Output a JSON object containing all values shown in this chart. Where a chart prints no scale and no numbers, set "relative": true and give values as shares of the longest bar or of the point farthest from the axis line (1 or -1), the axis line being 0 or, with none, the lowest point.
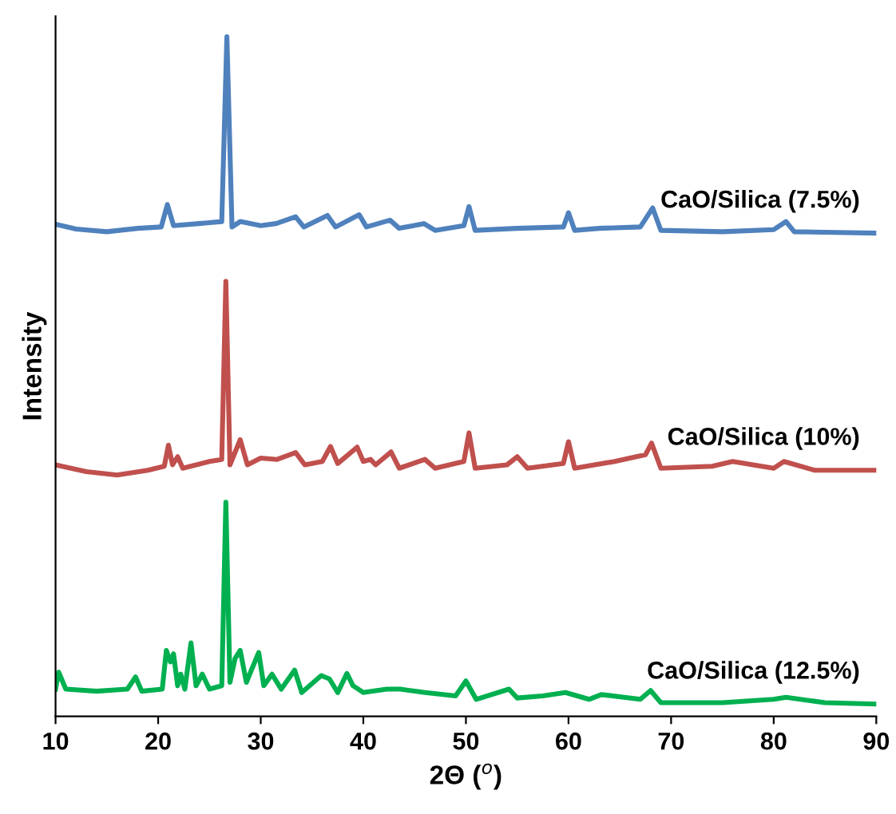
{
  "chart_data": {
    "type": "line",
    "relative": true,
    "xlabel": "2Θ ($^{o}$)",
    "ylabel": "Intensity",
    "xlim": [
      10,
      90
    ],
    "xticks": [
      10,
      20,
      30,
      40,
      50,
      60,
      70,
      80,
      90
    ],
    "legend": false,
    "grid": false,
    "tick_labels": "x",
    "marker": "none",
    "line_style": "solid",
    "series": [
      {
        "name": "CaO/Silica (7.5%)",
        "color": "#4f81bd",
        "x": [
          10,
          12,
          15,
          18,
          20.3,
          20.9,
          21.5,
          24,
          26.2,
          26.7,
          27.2,
          28,
          30,
          31.5,
          33.4,
          34.2,
          36.5,
          37.3,
          39.6,
          40.3,
          42.6,
          43.5,
          45.9,
          47,
          49.8,
          50.3,
          50.9,
          55,
          59.5,
          60,
          60.6,
          63,
          67,
          68.2,
          69,
          75,
          80,
          81.2,
          82,
          86,
          90
        ],
        "values": [
          0.724,
          0.717,
          0.713,
          0.718,
          0.72,
          0.753,
          0.722,
          0.725,
          0.728,
          1.0,
          0.72,
          0.728,
          0.722,
          0.725,
          0.735,
          0.72,
          0.737,
          0.72,
          0.738,
          0.72,
          0.73,
          0.718,
          0.725,
          0.715,
          0.722,
          0.75,
          0.715,
          0.718,
          0.72,
          0.741,
          0.715,
          0.718,
          0.72,
          0.748,
          0.715,
          0.713,
          0.716,
          0.728,
          0.713,
          0.712,
          0.711
        ]
      },
      {
        "name": "CaO/Silica (10%)",
        "color": "#c0504d",
        "x": [
          10,
          13,
          16,
          19,
          20.6,
          21,
          21.4,
          21.9,
          22.4,
          25,
          26.2,
          26.6,
          27.0,
          28.0,
          28.7,
          30,
          31.6,
          33.4,
          34.3,
          36.0,
          36.8,
          37.5,
          39.4,
          40,
          40.7,
          41.2,
          42.7,
          43.5,
          46,
          47,
          49.8,
          50.3,
          50.9,
          54,
          55,
          56,
          59.5,
          60,
          60.6,
          64.5,
          67.5,
          68.1,
          69,
          74,
          76,
          80,
          81,
          84,
          90
        ],
        "values": [
          0.37,
          0.36,
          0.355,
          0.362,
          0.368,
          0.399,
          0.37,
          0.382,
          0.365,
          0.375,
          0.378,
          0.64,
          0.37,
          0.407,
          0.37,
          0.38,
          0.378,
          0.388,
          0.37,
          0.375,
          0.397,
          0.372,
          0.396,
          0.375,
          0.378,
          0.37,
          0.389,
          0.365,
          0.378,
          0.365,
          0.375,
          0.417,
          0.365,
          0.37,
          0.382,
          0.365,
          0.372,
          0.404,
          0.365,
          0.375,
          0.385,
          0.402,
          0.365,
          0.368,
          0.375,
          0.365,
          0.375,
          0.362,
          0.362
        ]
      },
      {
        "name": "CaO/Silica (12.5%)",
        "color": "#00b050",
        "x": [
          10,
          10.3,
          11,
          14,
          17,
          17.8,
          18.4,
          20.4,
          20.8,
          21.2,
          21.5,
          21.9,
          22.2,
          22.6,
          23.2,
          23.7,
          24.3,
          25,
          26.2,
          26.6,
          27.0,
          27.5,
          28,
          28.6,
          29.8,
          30.3,
          31.1,
          32,
          33.3,
          34,
          35.9,
          36.7,
          37.5,
          38.4,
          39,
          40,
          42.3,
          43.6,
          46,
          49,
          50,
          51,
          54.2,
          55,
          57.5,
          59.7,
          62,
          63.2,
          67,
          68,
          69,
          75,
          80,
          81.2,
          85,
          90
        ],
        "values": [
          0.04,
          0.065,
          0.04,
          0.037,
          0.04,
          0.058,
          0.037,
          0.04,
          0.097,
          0.08,
          0.092,
          0.045,
          0.062,
          0.04,
          0.108,
          0.045,
          0.062,
          0.04,
          0.045,
          0.315,
          0.05,
          0.085,
          0.097,
          0.05,
          0.094,
          0.045,
          0.062,
          0.04,
          0.068,
          0.035,
          0.06,
          0.055,
          0.035,
          0.063,
          0.045,
          0.035,
          0.04,
          0.04,
          0.035,
          0.03,
          0.052,
          0.025,
          0.04,
          0.027,
          0.03,
          0.035,
          0.025,
          0.032,
          0.025,
          0.038,
          0.02,
          0.02,
          0.025,
          0.028,
          0.02,
          0.018
        ]
      }
    ]
  }
}
